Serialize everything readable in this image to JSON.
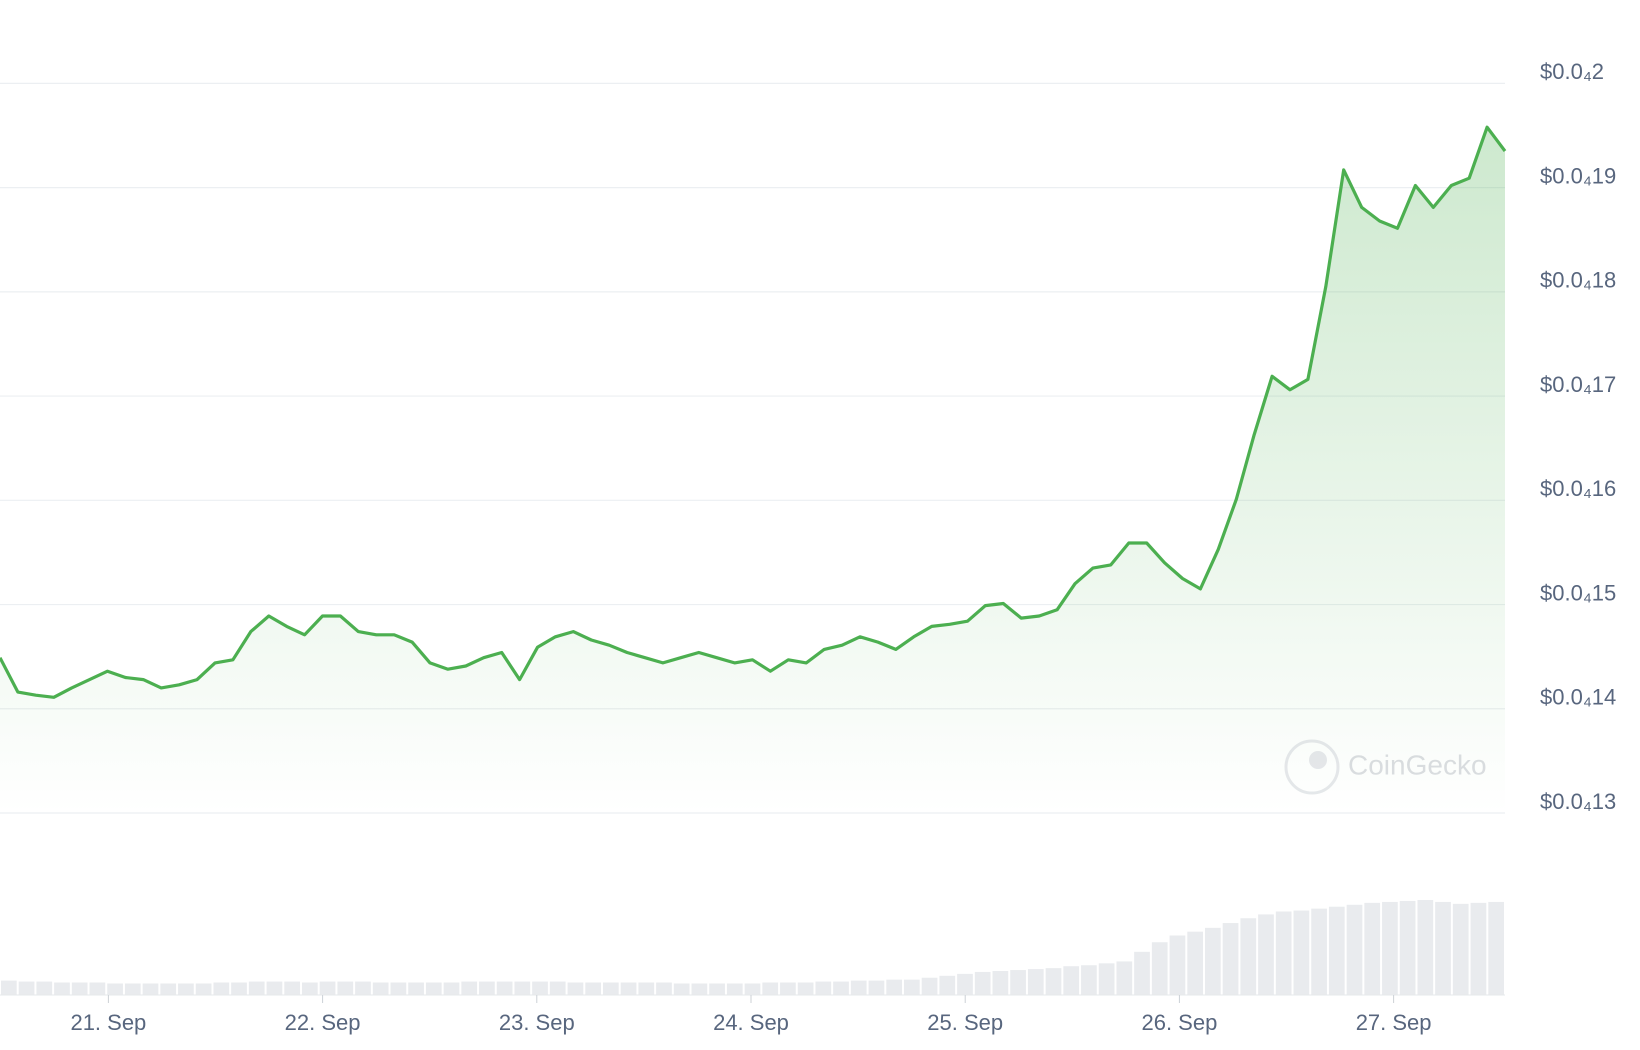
{
  "chart_data": {
    "type": "line",
    "watermark": "CoinGecko",
    "xlim": [
      -0.506,
      6.52
    ],
    "xticks": [
      {
        "value": 0,
        "label": "21. Sep"
      },
      {
        "value": 1,
        "label": "22. Sep"
      },
      {
        "value": 2,
        "label": "23. Sep"
      },
      {
        "value": 3,
        "label": "24. Sep"
      },
      {
        "value": 4,
        "label": "25. Sep"
      },
      {
        "value": 5,
        "label": "26. Sep"
      },
      {
        "value": 6,
        "label": "27. Sep"
      }
    ],
    "ylim": [
      1.3e-05,
      2.08e-05
    ],
    "yticks": [
      {
        "value": 1.3e-05,
        "label": "$0.0₄13"
      },
      {
        "value": 1.4e-05,
        "label": "$0.0₄14"
      },
      {
        "value": 1.5e-05,
        "label": "$0.0₄15"
      },
      {
        "value": 1.6e-05,
        "label": "$0.0₄16"
      },
      {
        "value": 1.7e-05,
        "label": "$0.0₄17"
      },
      {
        "value": 1.8e-05,
        "label": "$0.0₄18"
      },
      {
        "value": 1.9e-05,
        "label": "$0.0₄19"
      },
      {
        "value": 2e-05,
        "label": "$0.0₄2"
      }
    ],
    "grid": true,
    "color": "#4caf50",
    "volume_color": "#e9ebee",
    "values": [
      1.449e-05,
      1.416e-05,
      1.413e-05,
      1.411e-05,
      1.42e-05,
      1.428e-05,
      1.436e-05,
      1.43e-05,
      1.428e-05,
      1.42e-05,
      1.423e-05,
      1.428e-05,
      1.444e-05,
      1.447e-05,
      1.474e-05,
      1.489e-05,
      1.479e-05,
      1.471e-05,
      1.489e-05,
      1.489e-05,
      1.474e-05,
      1.471e-05,
      1.471e-05,
      1.464e-05,
      1.444e-05,
      1.438e-05,
      1.441e-05,
      1.449e-05,
      1.454e-05,
      1.428e-05,
      1.459e-05,
      1.469e-05,
      1.474e-05,
      1.466e-05,
      1.461e-05,
      1.454e-05,
      1.449e-05,
      1.444e-05,
      1.449e-05,
      1.454e-05,
      1.449e-05,
      1.444e-05,
      1.447e-05,
      1.436e-05,
      1.447e-05,
      1.444e-05,
      1.457e-05,
      1.461e-05,
      1.469e-05,
      1.464e-05,
      1.457e-05,
      1.469e-05,
      1.479e-05,
      1.481e-05,
      1.484e-05,
      1.499e-05,
      1.501e-05,
      1.487e-05,
      1.489e-05,
      1.495e-05,
      1.52e-05,
      1.535e-05,
      1.538e-05,
      1.559e-05,
      1.559e-05,
      1.54e-05,
      1.525e-05,
      1.515e-05,
      1.553e-05,
      1.601e-05,
      1.663e-05,
      1.719e-05,
      1.706e-05,
      1.716e-05,
      1.805e-05,
      1.917e-05,
      1.881e-05,
      1.868e-05,
      1.861e-05,
      1.902e-05,
      1.881e-05,
      1.902e-05,
      1.909e-05,
      1.958e-05,
      1.935e-05
    ],
    "volume": [
      15,
      14,
      14,
      13,
      13,
      13,
      12,
      12,
      12,
      12,
      12,
      12,
      13,
      13,
      14,
      14,
      14,
      13,
      14,
      14,
      14,
      13,
      13,
      13,
      13,
      13,
      14,
      14,
      14,
      14,
      14,
      14,
      13,
      13,
      13,
      13,
      13,
      13,
      12,
      12,
      12,
      12,
      12,
      13,
      13,
      13,
      14,
      14,
      15,
      15,
      16,
      16,
      18,
      20,
      22,
      24,
      25,
      26,
      27,
      28,
      30,
      31,
      33,
      35,
      45,
      55,
      62,
      66,
      70,
      75,
      80,
      84,
      87,
      88,
      90,
      92,
      94,
      96,
      97,
      98,
      99,
      97,
      95,
      96,
      97
    ]
  }
}
